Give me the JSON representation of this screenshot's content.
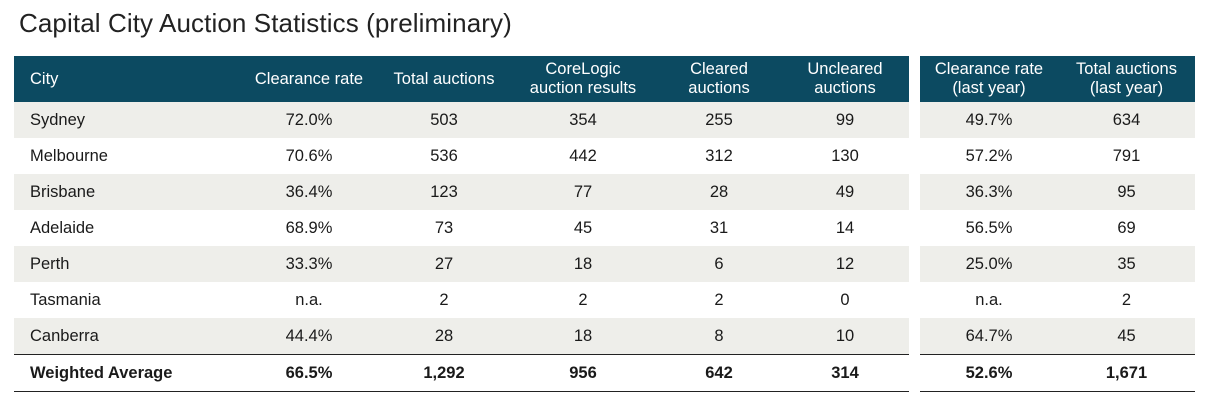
{
  "title": "Capital City Auction Statistics (preliminary)",
  "headers": {
    "city": "City",
    "clearance_rate": "Clearance rate",
    "total_auctions": "Total auctions",
    "corelogic_line1": "CoreLogic",
    "corelogic_line2": "auction results",
    "cleared_line1": "Cleared",
    "cleared_line2": "auctions",
    "uncleared_line1": "Uncleared",
    "uncleared_line2": "auctions",
    "ly_clearance_line1": "Clearance rate",
    "ly_clearance_line2": "(last year)",
    "ly_total_line1": "Total auctions",
    "ly_total_line2": "(last year)"
  },
  "rows": [
    {
      "city": "Sydney",
      "clearance_rate": "72.0%",
      "total_auctions": "503",
      "corelogic": "354",
      "cleared": "255",
      "uncleared": "99",
      "ly_clearance": "49.7%",
      "ly_total": "634"
    },
    {
      "city": "Melbourne",
      "clearance_rate": "70.6%",
      "total_auctions": "536",
      "corelogic": "442",
      "cleared": "312",
      "uncleared": "130",
      "ly_clearance": "57.2%",
      "ly_total": "791"
    },
    {
      "city": "Brisbane",
      "clearance_rate": "36.4%",
      "total_auctions": "123",
      "corelogic": "77",
      "cleared": "28",
      "uncleared": "49",
      "ly_clearance": "36.3%",
      "ly_total": "95"
    },
    {
      "city": "Adelaide",
      "clearance_rate": "68.9%",
      "total_auctions": "73",
      "corelogic": "45",
      "cleared": "31",
      "uncleared": "14",
      "ly_clearance": "56.5%",
      "ly_total": "69"
    },
    {
      "city": "Perth",
      "clearance_rate": "33.3%",
      "total_auctions": "27",
      "corelogic": "18",
      "cleared": "6",
      "uncleared": "12",
      "ly_clearance": "25.0%",
      "ly_total": "35"
    },
    {
      "city": "Tasmania",
      "clearance_rate": "n.a.",
      "total_auctions": "2",
      "corelogic": "2",
      "cleared": "2",
      "uncleared": "0",
      "ly_clearance": "n.a.",
      "ly_total": "2"
    },
    {
      "city": "Canberra",
      "clearance_rate": "44.4%",
      "total_auctions": "28",
      "corelogic": "18",
      "cleared": "8",
      "uncleared": "10",
      "ly_clearance": "64.7%",
      "ly_total": "45"
    }
  ],
  "total": {
    "city": "Weighted Average",
    "clearance_rate": "66.5%",
    "total_auctions": "1,292",
    "corelogic": "956",
    "cleared": "642",
    "uncleared": "314",
    "ly_clearance": "52.6%",
    "ly_total": "1,671"
  },
  "colors": {
    "header_bg": "#0c4a61",
    "stripe": "#eeeeea"
  }
}
